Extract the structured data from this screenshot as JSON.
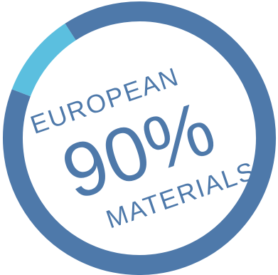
{
  "badge": {
    "value_text": "90%",
    "top_label": "EUROPEAN",
    "bottom_label": "MATERIALS",
    "progress_fraction": 0.9
  },
  "colors": {
    "ring_main": "#4e79aa",
    "ring_accent": "#5bbfdf",
    "text": "#4e79aa",
    "background": "#ffffff"
  }
}
